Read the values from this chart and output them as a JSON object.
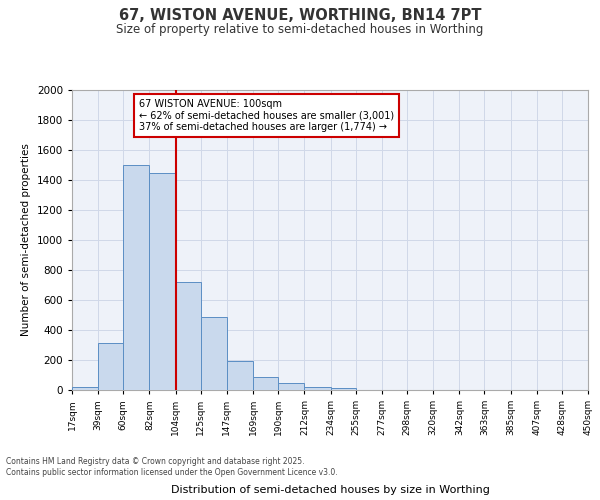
{
  "title_line1": "67, WISTON AVENUE, WORTHING, BN14 7PT",
  "title_line2": "Size of property relative to semi-detached houses in Worthing",
  "xlabel": "Distribution of semi-detached houses by size in Worthing",
  "ylabel": "Number of semi-detached properties",
  "bar_color": "#c9d9ed",
  "bar_edge_color": "#5b8ec4",
  "grid_color": "#d0d8e8",
  "background_color": "#eef2f9",
  "vline_x": 104,
  "vline_color": "#cc0000",
  "categories": [
    "17sqm",
    "39sqm",
    "60sqm",
    "82sqm",
    "104sqm",
    "125sqm",
    "147sqm",
    "169sqm",
    "190sqm",
    "212sqm",
    "234sqm",
    "255sqm",
    "277sqm",
    "298sqm",
    "320sqm",
    "342sqm",
    "363sqm",
    "385sqm",
    "407sqm",
    "428sqm",
    "450sqm"
  ],
  "bin_edges": [
    17,
    39,
    60,
    82,
    104,
    125,
    147,
    169,
    190,
    212,
    234,
    255,
    277,
    298,
    320,
    342,
    363,
    385,
    407,
    428,
    450
  ],
  "values": [
    20,
    315,
    1500,
    1450,
    720,
    485,
    195,
    90,
    45,
    20,
    15,
    0,
    0,
    0,
    0,
    0,
    0,
    0,
    0,
    0,
    0
  ],
  "annotation_title": "67 WISTON AVENUE: 100sqm",
  "annotation_line1": "← 62% of semi-detached houses are smaller (3,001)",
  "annotation_line2": "37% of semi-detached houses are larger (1,774) →",
  "annotation_box_color": "#ffffff",
  "annotation_box_edge": "#cc0000",
  "footnote1": "Contains HM Land Registry data © Crown copyright and database right 2025.",
  "footnote2": "Contains public sector information licensed under the Open Government Licence v3.0.",
  "ylim": [
    0,
    2000
  ],
  "yticks": [
    0,
    200,
    400,
    600,
    800,
    1000,
    1200,
    1400,
    1600,
    1800,
    2000
  ]
}
